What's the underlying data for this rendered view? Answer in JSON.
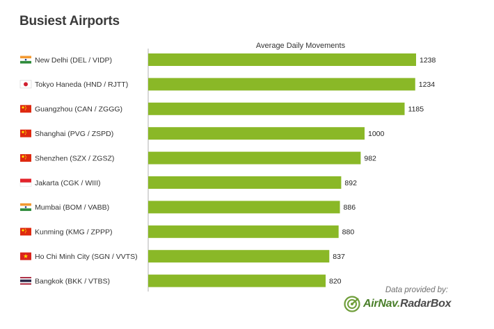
{
  "title": "Busiest Airports",
  "footer": {
    "provided_by": "Data provided by:",
    "brand_part1": "AirNav",
    "brand_part2": ".",
    "brand_part3": "RadarBox"
  },
  "colors": {
    "bar": "#8ab827",
    "axis": "#b0b0b0",
    "brand_green": "#6f9e3a"
  },
  "chart_data": {
    "type": "bar",
    "orientation": "horizontal",
    "title": "Busiest Airports",
    "series_label": "Average Daily Movements",
    "categories": [
      "New Delhi (DEL / VIDP)",
      "Tokyo Haneda (HND / RJTT)",
      "Guangzhou (CAN / ZGGG)",
      "Shanghai (PVG / ZSPD)",
      "Shenzhen (SZX / ZGSZ)",
      "Jakarta (CGK / WIII)",
      "Mumbai (BOM / VABB)",
      "Kunming (KMG / ZPPP)",
      "Ho Chi Minh City (SGN / VVTS)",
      "Bangkok (BKK / VTBS)"
    ],
    "flags": [
      "india",
      "japan",
      "china",
      "china",
      "china",
      "indonesia",
      "india",
      "china",
      "vietnam",
      "thailand"
    ],
    "values": [
      1238,
      1234,
      1185,
      1000,
      982,
      892,
      886,
      880,
      837,
      820
    ],
    "xlim": [
      0,
      1238
    ],
    "grid": false,
    "data_labels": true
  }
}
